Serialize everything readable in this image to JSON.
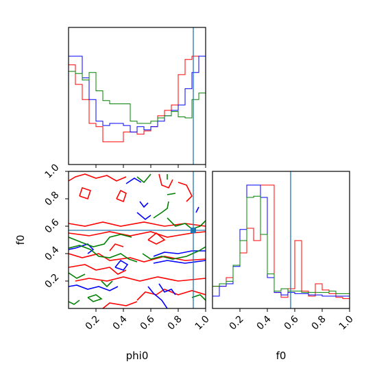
{
  "chart_data": [
    {
      "type": "histogram",
      "panel": "phi0 marginal (top-left)",
      "bins": [
        0.0,
        0.05,
        0.1,
        0.15,
        0.2,
        0.25,
        0.3,
        0.35,
        0.4,
        0.45,
        0.5,
        0.55,
        0.6,
        0.65,
        0.7,
        0.75,
        0.8,
        0.85,
        0.9,
        0.95,
        1.0
      ],
      "series": [
        {
          "color": "#ff0000",
          "values": [
            0.92,
            0.74,
            0.6,
            0.38,
            0.35,
            0.21,
            0.21,
            0.21,
            0.3,
            0.3,
            0.28,
            0.31,
            0.35,
            0.45,
            0.5,
            0.55,
            0.83,
            0.97,
            1.0,
            1.0
          ]
        },
        {
          "color": "#0000ff",
          "values": [
            1.0,
            1.0,
            0.8,
            0.6,
            0.4,
            0.36,
            0.38,
            0.38,
            0.36,
            0.3,
            0.35,
            0.32,
            0.35,
            0.4,
            0.45,
            0.5,
            0.55,
            0.7,
            0.85,
            1.0
          ]
        },
        {
          "color": "#008000",
          "values": [
            0.86,
            0.84,
            0.78,
            0.85,
            0.68,
            0.59,
            0.56,
            0.56,
            0.56,
            0.4,
            0.38,
            0.38,
            0.4,
            0.43,
            0.45,
            0.49,
            0.44,
            0.43,
            0.6,
            0.66
          ]
        }
      ],
      "truth_line_x": 0.91,
      "xlim": [
        0,
        1
      ],
      "tick_labels_shown": false
    },
    {
      "type": "contour",
      "panel": "phi0 vs f0 joint (bottom-left)",
      "xlabel": "phi0",
      "ylabel": "f0",
      "xlim": [
        0,
        1
      ],
      "ylim": [
        0,
        1
      ],
      "xticks": [
        "0.2",
        "0.4",
        "0.6",
        "0.8",
        "1.0"
      ],
      "yticks": [
        "0.2",
        "0.4",
        "0.6",
        "0.8",
        "1.0"
      ],
      "series_colors": [
        "#ff0000",
        "#0000ff",
        "#008000"
      ],
      "truth_point": [
        0.91,
        0.57
      ]
    },
    {
      "type": "histogram",
      "panel": "f0 marginal (bottom-right)",
      "xlabel": "f0",
      "xlim": [
        0,
        1
      ],
      "xticks": [
        "0.2",
        "0.4",
        "0.6",
        "0.8",
        "1.0"
      ],
      "bins": [
        0.0,
        0.05,
        0.1,
        0.15,
        0.2,
        0.25,
        0.3,
        0.35,
        0.4,
        0.45,
        0.5,
        0.55,
        0.6,
        0.65,
        0.7,
        0.75,
        0.8,
        0.85,
        0.9,
        0.95,
        1.0
      ],
      "series": [
        {
          "color": "#ff0000",
          "values": [
            0.18,
            0.18,
            0.25,
            0.35,
            0.45,
            0.65,
            0.55,
            1.0,
            1.0,
            0.13,
            0.09,
            0.16,
            0.55,
            0.14,
            0.1,
            0.2,
            0.15,
            0.12,
            0.09,
            0.08
          ]
        },
        {
          "color": "#0000ff",
          "values": [
            0.1,
            0.18,
            0.2,
            0.34,
            0.64,
            1.0,
            1.0,
            0.9,
            0.25,
            0.13,
            0.11,
            0.13,
            0.12,
            0.12,
            0.11,
            0.11,
            0.1,
            0.1,
            0.1,
            0.1
          ]
        },
        {
          "color": "#008000",
          "values": [
            0.18,
            0.2,
            0.22,
            0.35,
            0.55,
            0.9,
            0.91,
            0.6,
            0.28,
            0.14,
            0.16,
            0.14,
            0.14,
            0.13,
            0.13,
            0.13,
            0.13,
            0.14,
            0.12,
            0.12
          ]
        }
      ],
      "truth_line_x": 0.57
    }
  ]
}
